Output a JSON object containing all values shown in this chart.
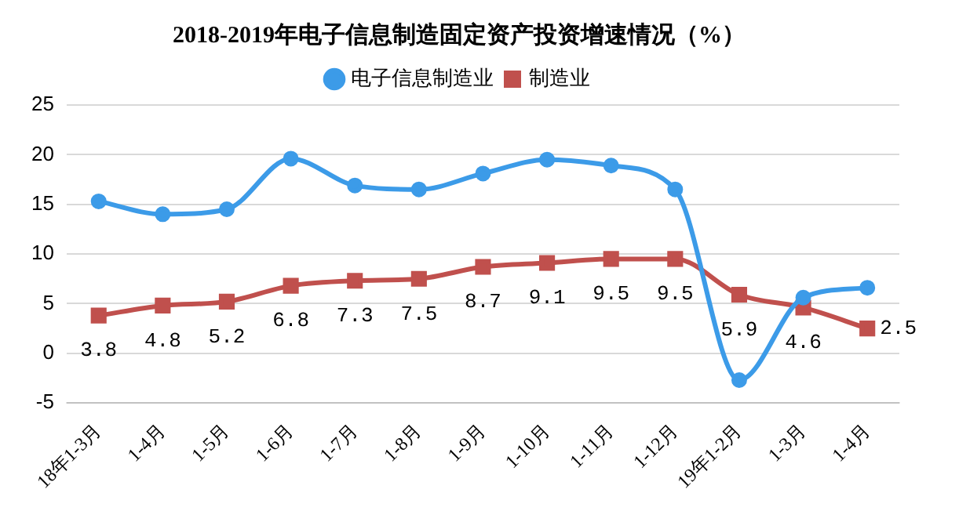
{
  "chart_data": {
    "type": "line",
    "title": "2018-2019年电子信息制造固定资产投资增速情况（%）",
    "categories": [
      "18年1-3月",
      "1-4月",
      "1-5月",
      "1-6月",
      "1-7月",
      "1-8月",
      "1-9月",
      "1-10月",
      "1-11月",
      "1-12月",
      "19年1-2月",
      "1-3月",
      "1-4月"
    ],
    "series": [
      {
        "name": "电子信息制造业",
        "color": "#3c9be8",
        "marker": "circle",
        "values": [
          15.3,
          14.0,
          14.5,
          19.6,
          16.9,
          16.5,
          18.1,
          19.5,
          18.9,
          16.5,
          -2.7,
          5.6,
          6.6
        ]
      },
      {
        "name": "制造业",
        "color": "#c0504d",
        "marker": "square",
        "data_labels": true,
        "values": [
          3.8,
          4.8,
          5.2,
          6.8,
          7.3,
          7.5,
          8.7,
          9.1,
          9.5,
          9.5,
          5.9,
          4.6,
          2.5
        ]
      }
    ],
    "ylim": [
      -5,
      25
    ],
    "yticks": [
      -5,
      0,
      5,
      10,
      15,
      20,
      25
    ],
    "grid": "y",
    "legend": "top"
  }
}
